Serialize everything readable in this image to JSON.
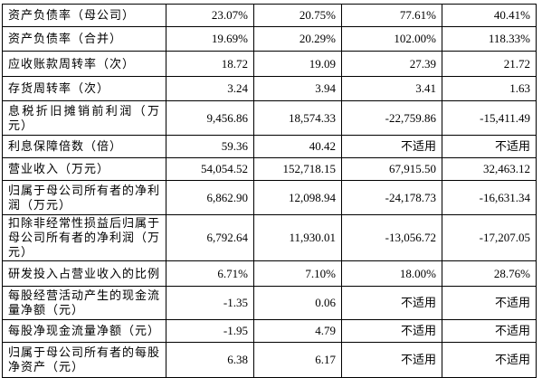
{
  "table": {
    "rows": [
      [
        "资产负债率（母公司）",
        "23.07%",
        "20.75%",
        "77.61%",
        "40.41%"
      ],
      [
        "资产负债率（合并）",
        "19.69%",
        "20.29%",
        "102.00%",
        "118.33%"
      ],
      [
        "应收账款周转率（次）",
        "18.72",
        "19.09",
        "27.39",
        "21.72"
      ],
      [
        "存货周转率（次）",
        "3.24",
        "3.94",
        "3.41",
        "1.63"
      ],
      [
        "息税折旧摊销前利润（万元）",
        "9,456.86",
        "18,574.33",
        "-22,759.86",
        "-15,411.49"
      ],
      [
        "利息保障倍数（倍）",
        "59.36",
        "40.42",
        "不适用",
        "不适用"
      ],
      [
        "营业收入（万元）",
        "54,054.52",
        "152,718.15",
        "67,915.50",
        "32,463.12"
      ],
      [
        "归属于母公司所有者的净利润（万元）",
        "6,862.90",
        "12,098.94",
        "-24,178.73",
        "-16,631.34"
      ],
      [
        "扣除非经常性损益后归属于母公司所有者的净利润（万元）",
        "6,792.64",
        "11,930.01",
        "-13,056.72",
        "-17,207.05"
      ],
      [
        "研发投入占营业收入的比例",
        "6.71%",
        "7.10%",
        "18.00%",
        "28.76%"
      ],
      [
        "每股经营活动产生的现金流量净额（元）",
        "-1.35",
        "0.06",
        "不适用",
        "不适用"
      ],
      [
        "每股净现金流量净额（元）",
        "-1.95",
        "4.79",
        "不适用",
        "不适用"
      ],
      [
        "归属于母公司所有者的每股净资产（元）",
        "6.38",
        "6.17",
        "不适用",
        "不适用"
      ]
    ]
  }
}
